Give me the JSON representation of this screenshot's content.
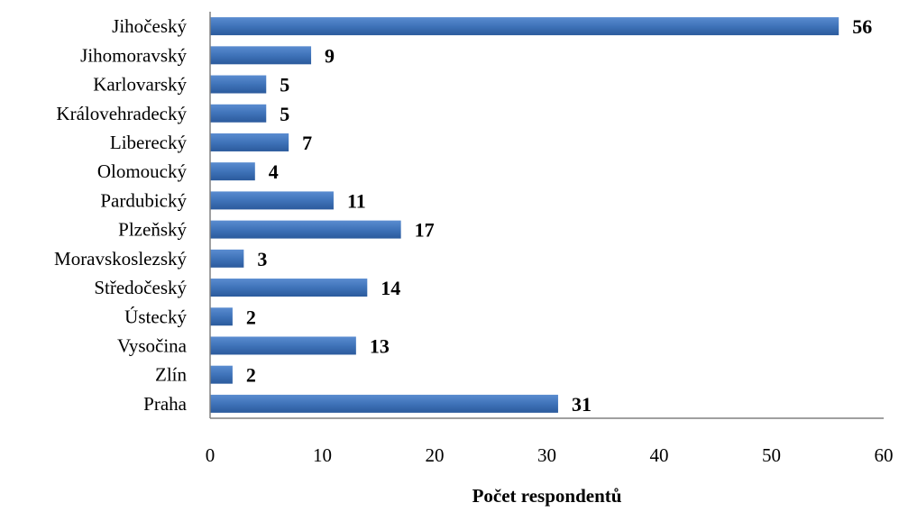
{
  "chart_data": {
    "type": "bar",
    "orientation": "horizontal",
    "categories": [
      "Jihočeský",
      "Jihomoravský",
      "Karlovarský",
      "Královehradecký",
      "Liberecký",
      "Olomoucký",
      "Pardubický",
      "Plzeňský",
      "Moravskoslezský",
      "Středočeský",
      "Ústecký",
      "Vysočina",
      "Zlín",
      "Praha"
    ],
    "values": [
      56,
      9,
      5,
      5,
      7,
      4,
      11,
      17,
      3,
      14,
      2,
      13,
      2,
      31
    ],
    "title": "",
    "xlabel": "Počet respondentů",
    "ylabel": "",
    "xlim": [
      0,
      60
    ],
    "xticks": [
      0,
      10,
      20,
      30,
      40,
      50,
      60
    ],
    "grid": false,
    "legend": "none",
    "bar_color": "#3F73B9",
    "data_labels": true
  }
}
